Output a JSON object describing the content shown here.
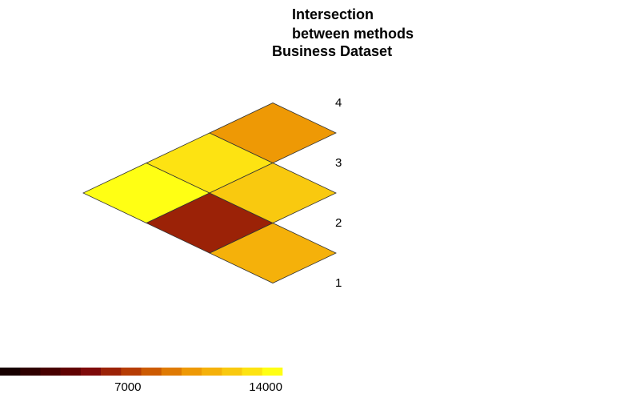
{
  "chart_data": {
    "type": "heatmap",
    "title_lines": [
      "Intersection",
      "between methods",
      "Business Dataset"
    ],
    "axis_labels": [
      "1",
      "2",
      "3",
      "4"
    ],
    "cells": [
      {
        "row": 2,
        "col": 1,
        "value": 10500
      },
      {
        "row": 3,
        "col": 1,
        "value": 14000
      },
      {
        "row": 3,
        "col": 2,
        "value": 5500
      },
      {
        "row": 4,
        "col": 1,
        "value": 12500
      },
      {
        "row": 4,
        "col": 2,
        "value": 11500
      },
      {
        "row": 4,
        "col": 3,
        "value": 9500
      }
    ],
    "colorbar": {
      "min": 0,
      "max": 14000,
      "ticks": [
        {
          "value": 7000,
          "label": "7000"
        },
        {
          "value": 14000,
          "label": "14000"
        }
      ],
      "colors": [
        "#160000",
        "#2e0000",
        "#470000",
        "#600202",
        "#7e0a0a",
        "#9b2207",
        "#b63c04",
        "#cc5a02",
        "#df7a03",
        "#ee9905",
        "#f5b10a",
        "#f9c90f",
        "#fde312",
        "#ffff14"
      ]
    }
  }
}
